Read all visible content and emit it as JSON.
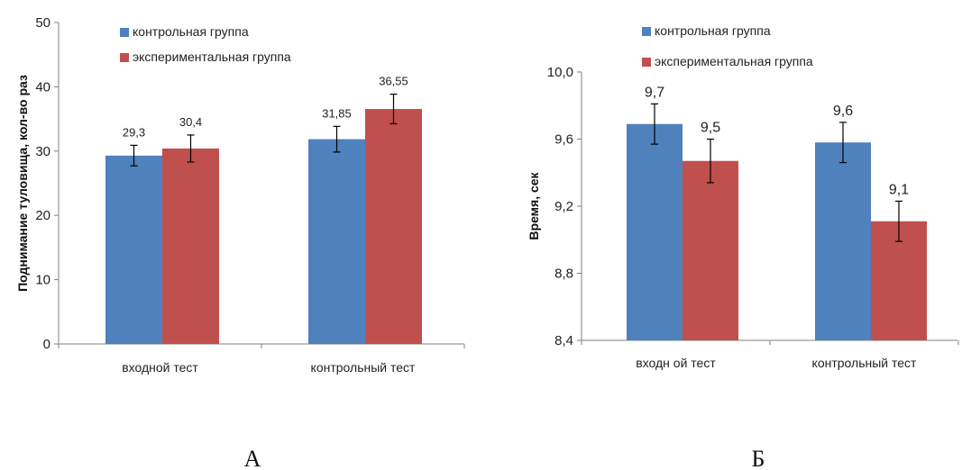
{
  "colors": {
    "control": "#4f81bd",
    "experimental": "#c0504d",
    "axis": "#808080",
    "errbar": "#000000"
  },
  "chart_data": [
    {
      "type": "bar",
      "panel_label": "А",
      "ylabel": "Поднимание туловища, кол-во раз",
      "ylim": [
        0,
        50
      ],
      "yticks": [
        0,
        10,
        20,
        30,
        40,
        50
      ],
      "ytick_labels": [
        "0",
        "10",
        "20",
        "30",
        "40",
        "50"
      ],
      "categories": [
        "входной тест",
        "контрольный тест"
      ],
      "series": [
        {
          "name": "контрольная группа",
          "values": [
            29.3,
            31.85
          ],
          "errors": [
            1.6,
            2.0
          ],
          "labels": [
            "29,3",
            "31,85"
          ]
        },
        {
          "name": "экспериментальная группа",
          "values": [
            30.4,
            36.55
          ],
          "errors": [
            2.1,
            2.3
          ],
          "labels": [
            "30,4",
            "36,55"
          ]
        }
      ],
      "legend": "top-left",
      "grid": false
    },
    {
      "type": "bar",
      "panel_label": "Б",
      "ylabel": "Время, сек",
      "ylim": [
        8.4,
        10.0
      ],
      "yticks": [
        8.4,
        8.8,
        9.2,
        9.6,
        10.0
      ],
      "ytick_labels": [
        "8,4",
        "8,8",
        "9,2",
        "9,6",
        "10,0"
      ],
      "categories": [
        "входн ой тест",
        "контрольный тест"
      ],
      "series": [
        {
          "name": "контрольная группа",
          "values": [
            9.69,
            9.58
          ],
          "errors": [
            0.12,
            0.12
          ],
          "labels": [
            "9,7",
            "9,6"
          ]
        },
        {
          "name": "экспериментальная группа",
          "values": [
            9.47,
            9.11
          ],
          "errors": [
            0.13,
            0.12
          ],
          "labels": [
            "9,5",
            "9,1"
          ]
        }
      ],
      "legend": "top-center",
      "grid": false
    }
  ]
}
